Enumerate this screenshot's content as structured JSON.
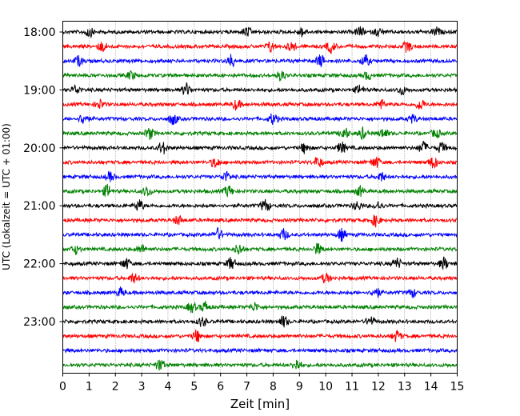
{
  "chart_data": {
    "type": "line",
    "subtype": "helicorder",
    "title": "",
    "xlabel": "Zeit  [min]",
    "ylabel": "UTC (Lokalzeit = UTC + 01:00)",
    "xlim": [
      0,
      15
    ],
    "x_ticks": [
      "0",
      "1",
      "2",
      "3",
      "4",
      "5",
      "6",
      "7",
      "8",
      "9",
      "10",
      "11",
      "12",
      "13",
      "14",
      "15"
    ],
    "y_ticks": [
      "18:00",
      "19:00",
      "20:00",
      "21:00",
      "22:00",
      "23:00"
    ],
    "trace_interval_min": 15,
    "trace_colors": [
      "#000000",
      "#ff0000",
      "#0000ff",
      "#008000"
    ],
    "vertical_grid": "dotted, every 1 min",
    "traces": [
      {
        "start": "18:00",
        "color": "#000000",
        "events_min": [
          1.0,
          7.0,
          9.1,
          11.3,
          12.0,
          14.2
        ]
      },
      {
        "start": "18:15",
        "color": "#ff0000",
        "events_min": [
          1.5,
          7.9,
          8.7,
          10.2,
          13.1
        ]
      },
      {
        "start": "18:30",
        "color": "#0000ff",
        "events_min": [
          0.6,
          6.4,
          9.8,
          11.5
        ]
      },
      {
        "start": "18:45",
        "color": "#008000",
        "events_min": [
          2.6,
          8.3,
          11.6
        ]
      },
      {
        "start": "19:00",
        "color": "#000000",
        "events_min": [
          0.5,
          4.7,
          11.3,
          12.9
        ]
      },
      {
        "start": "19:15",
        "color": "#ff0000",
        "events_min": [
          1.4,
          6.6,
          12.1,
          13.6
        ]
      },
      {
        "start": "19:30",
        "color": "#0000ff",
        "events_min": [
          0.8,
          4.2,
          8.0,
          13.3
        ]
      },
      {
        "start": "19:45",
        "color": "#008000",
        "events_min": [
          3.3,
          10.7,
          11.4,
          12.2,
          14.2
        ]
      },
      {
        "start": "20:00",
        "color": "#000000",
        "events_min": [
          3.8,
          9.2,
          10.6,
          13.7,
          14.4
        ]
      },
      {
        "start": "20:15",
        "color": "#ff0000",
        "events_min": [
          5.8,
          9.7,
          11.9,
          14.1
        ]
      },
      {
        "start": "20:30",
        "color": "#0000ff",
        "events_min": [
          1.8,
          6.2,
          12.1
        ]
      },
      {
        "start": "20:45",
        "color": "#008000",
        "events_min": [
          1.7,
          3.2,
          6.3,
          11.3
        ]
      },
      {
        "start": "21:00",
        "color": "#000000",
        "events_min": [
          2.9,
          7.7,
          11.2,
          12.0
        ]
      },
      {
        "start": "21:15",
        "color": "#ff0000",
        "events_min": [
          4.4,
          11.9
        ]
      },
      {
        "start": "21:30",
        "color": "#0000ff",
        "events_min": [
          5.9,
          8.4,
          10.6
        ]
      },
      {
        "start": "21:45",
        "color": "#008000",
        "events_min": [
          0.5,
          3.0,
          6.7,
          9.7
        ]
      },
      {
        "start": "22:00",
        "color": "#000000",
        "events_min": [
          2.4,
          6.4,
          12.7,
          14.5
        ]
      },
      {
        "start": "22:15",
        "color": "#ff0000",
        "events_min": [
          2.7,
          10.0
        ]
      },
      {
        "start": "22:30",
        "color": "#0000ff",
        "events_min": [
          2.2,
          11.9,
          13.3
        ]
      },
      {
        "start": "22:45",
        "color": "#008000",
        "events_min": [
          4.9,
          5.4,
          7.3
        ]
      },
      {
        "start": "23:00",
        "color": "#000000",
        "events_min": [
          5.3,
          8.4,
          11.7
        ]
      },
      {
        "start": "23:15",
        "color": "#ff0000",
        "events_min": [
          5.1,
          12.7
        ]
      },
      {
        "start": "23:30",
        "color": "#0000ff",
        "events_min": []
      },
      {
        "start": "23:45",
        "color": "#008000",
        "events_min": [
          3.7,
          8.9
        ]
      }
    ]
  }
}
